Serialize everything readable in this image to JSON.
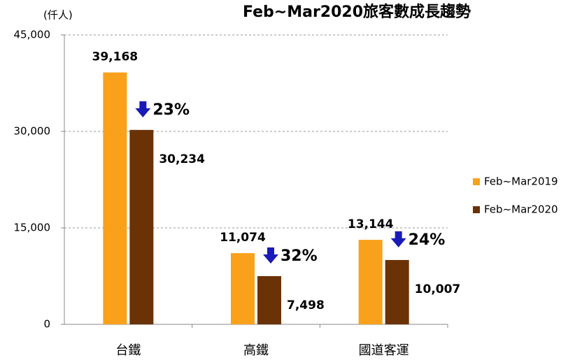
{
  "chart_data": {
    "type": "bar",
    "title": "Feb~Mar2020旅客數成長趨勢",
    "y_axis_label": "(仟人)",
    "categories": [
      "台鐵",
      "高鐵",
      "國道客運"
    ],
    "series": [
      {
        "name": "Feb~Mar2019",
        "color": "#f9a11b",
        "values": [
          39168,
          11074,
          13144
        ],
        "value_labels": [
          "39,168",
          "11,074",
          "13,144"
        ]
      },
      {
        "name": "Feb~Mar2020",
        "color": "#6b3205",
        "values": [
          30234,
          7498,
          10007
        ],
        "value_labels": [
          "30,234",
          "7,498",
          "10,007"
        ]
      }
    ],
    "annotations": [
      "23%",
      "32%",
      "24%"
    ],
    "annotation_color": "#1a1ab8",
    "ylim": [
      0,
      45000
    ],
    "yticks": [
      0,
      {
        "value": 15000,
        "label": "15,000"
      },
      {
        "value": 30000,
        "label": "30,000"
      },
      {
        "value": 45000,
        "label": "45,000"
      }
    ],
    "grid": true,
    "legend": "right"
  }
}
